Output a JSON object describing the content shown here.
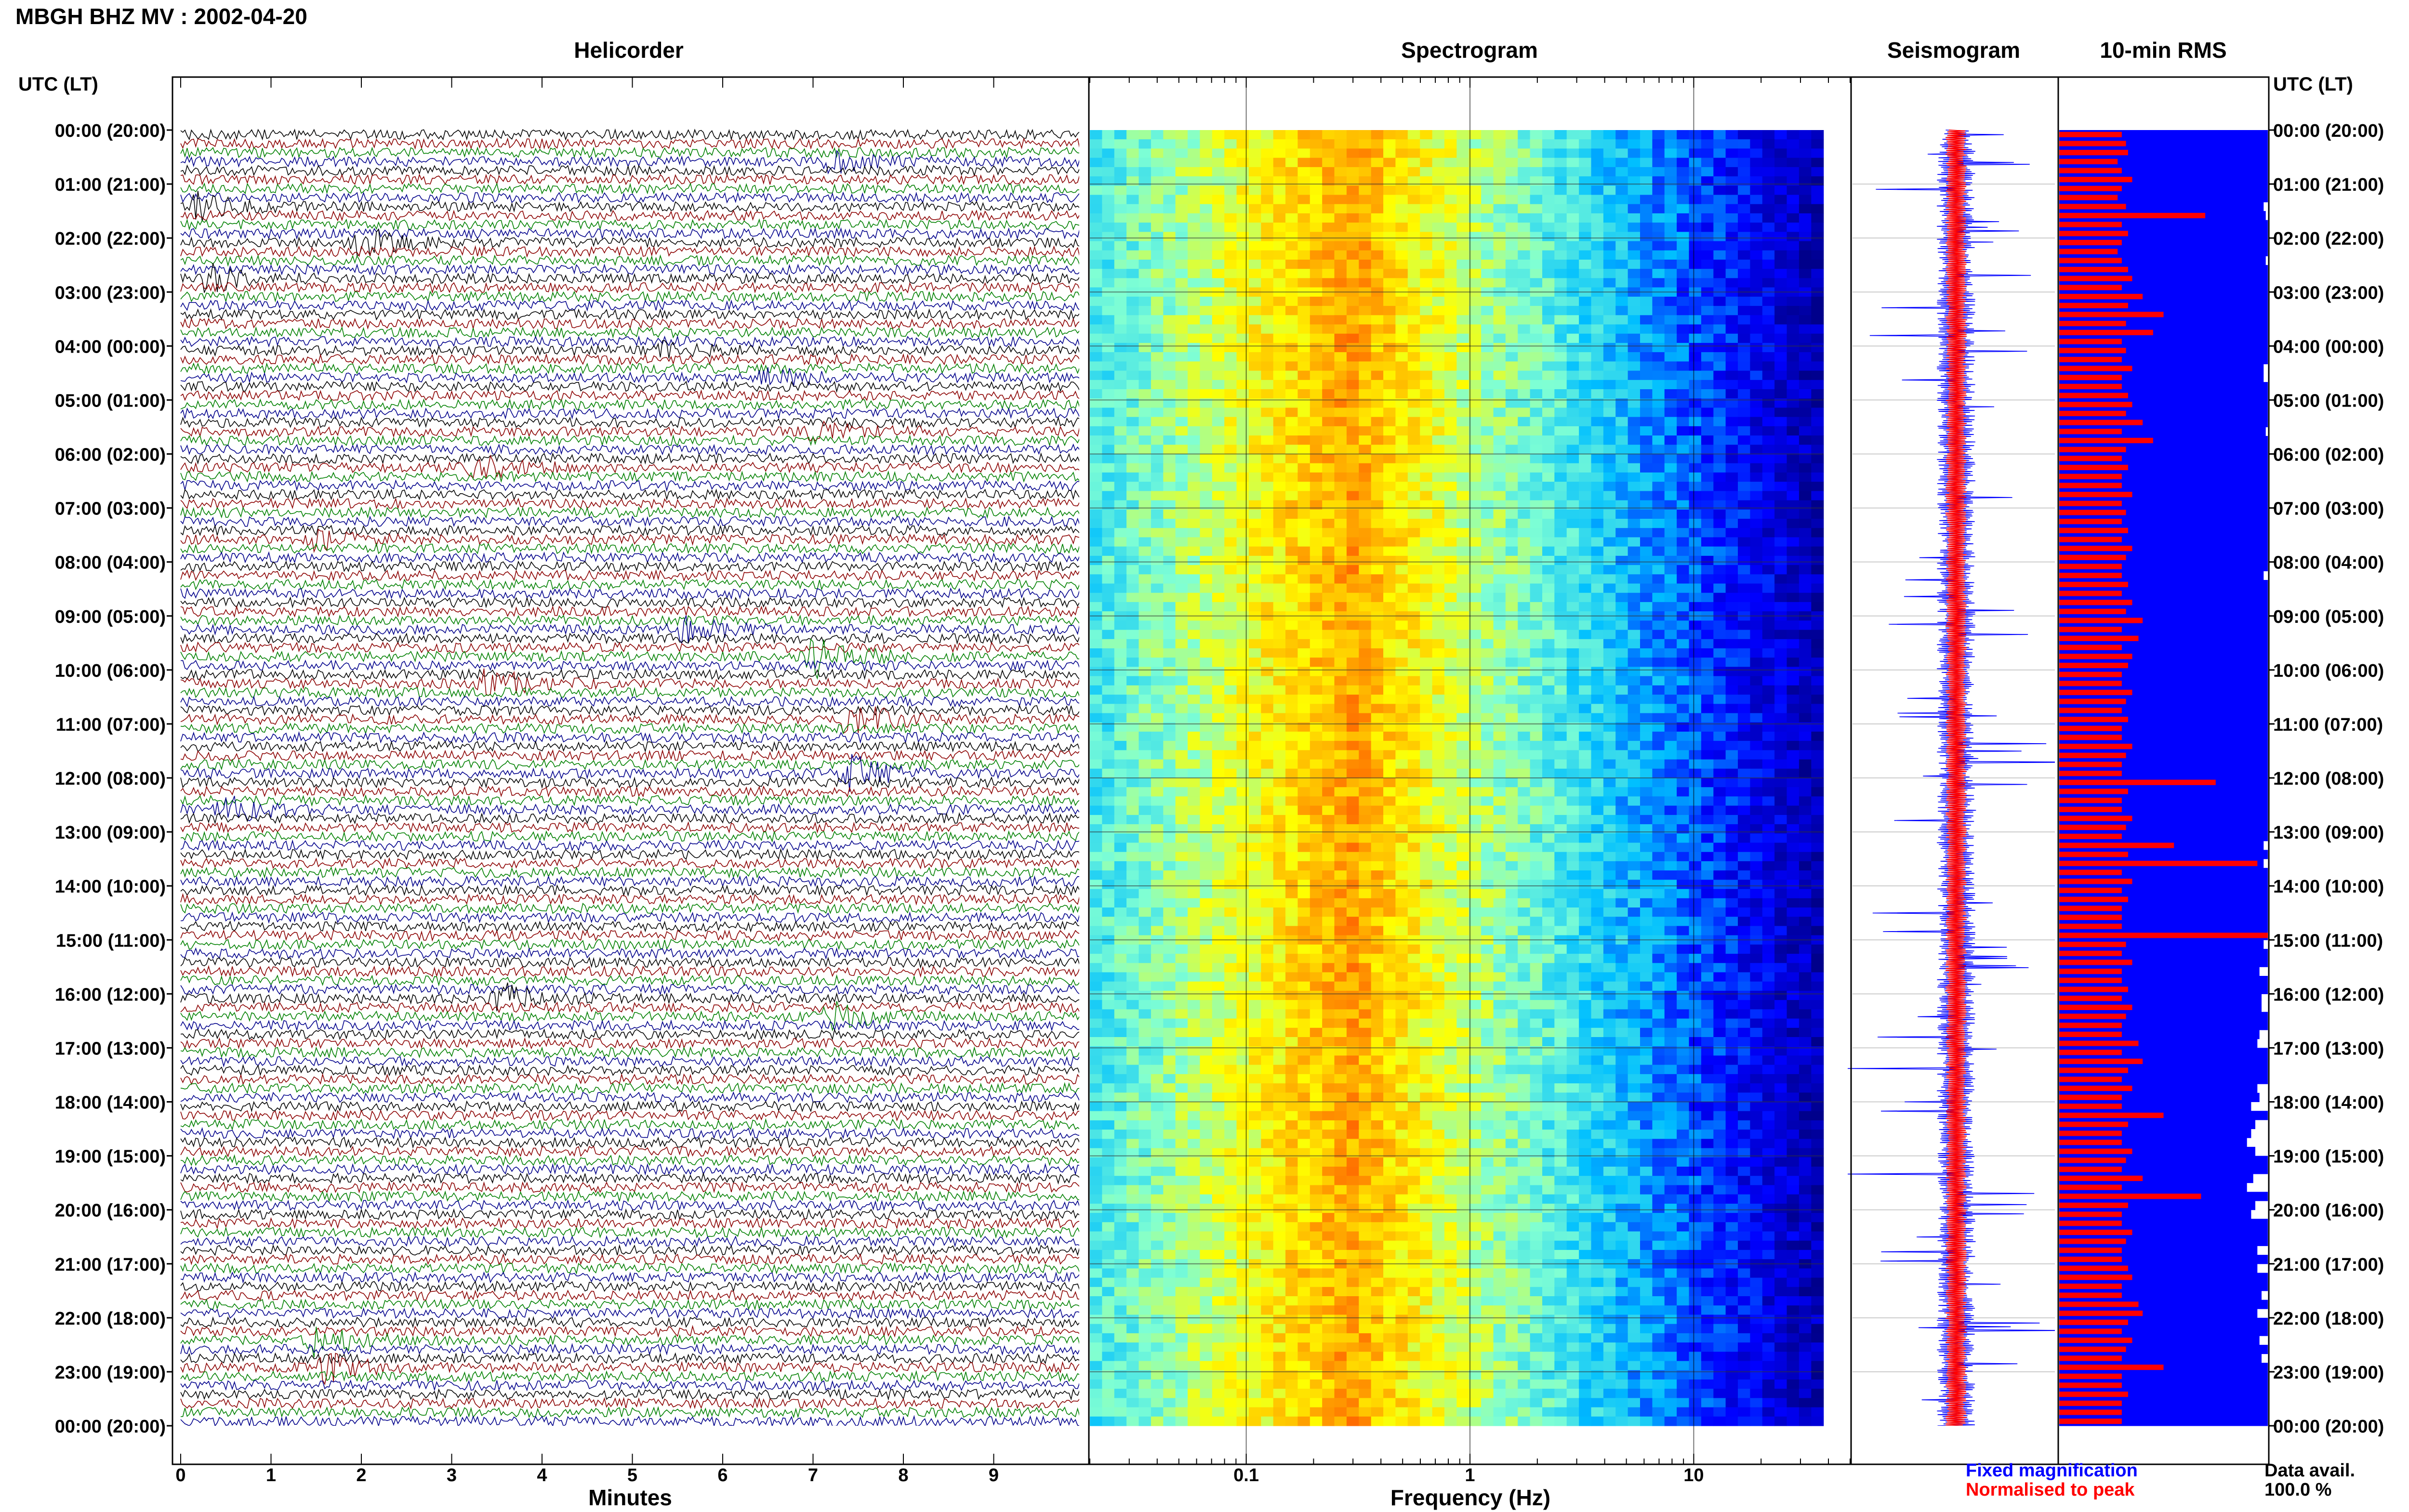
{
  "header": {
    "title": "MBGH BHZ MV : 2002-04-20"
  },
  "panels": {
    "helicorder": "Helicorder",
    "spectrogram": "Spectrogram",
    "seismogram": "Seismogram",
    "rms": "10-min RMS"
  },
  "axis_labels": {
    "left_time": "UTC (LT)",
    "right_time": "UTC (LT)",
    "minutes": "Minutes",
    "frequency": "Frequency (Hz)"
  },
  "legend": {
    "fixed": "Fixed magnification",
    "normalised": "Normalised to peak",
    "data_avail_label": "Data avail.",
    "data_avail_value": "100.0 %"
  },
  "colors": {
    "fixed": "#0000ff",
    "normalised": "#ff0000",
    "black": "#000000",
    "dark_red": "#8b0000",
    "green": "#008000",
    "blue": "#00008b"
  },
  "chart_data": [
    {
      "type": "line",
      "name": "helicorder",
      "xlabel": "Minutes",
      "xlim": [
        0,
        10
      ],
      "x_ticks": [
        0,
        1,
        2,
        3,
        4,
        5,
        6,
        7,
        8,
        9
      ],
      "time_labels": [
        "00:00 (20:00)",
        "01:00 (21:00)",
        "02:00 (22:00)",
        "03:00 (23:00)",
        "04:00 (00:00)",
        "05:00 (01:00)",
        "06:00 (02:00)",
        "07:00 (03:00)",
        "08:00 (04:00)",
        "09:00 (05:00)",
        "10:00 (06:00)",
        "11:00 (07:00)",
        "12:00 (08:00)",
        "13:00 (09:00)",
        "14:00 (10:00)",
        "15:00 (11:00)",
        "16:00 (12:00)",
        "17:00 (13:00)",
        "18:00 (14:00)",
        "19:00 (15:00)",
        "20:00 (16:00)",
        "21:00 (17:00)",
        "22:00 (18:00)",
        "23:00 (19:00)",
        "00:00 (20:00)"
      ],
      "traces_per_hour": 6,
      "trace_colors": [
        "#000000",
        "#8b0000",
        "#008000",
        "#00008b"
      ],
      "events": [
        {
          "trace": 3,
          "minute": 7.2,
          "amp": 2.2
        },
        {
          "trace": 8,
          "minute": 0.2,
          "amp": 2.6
        },
        {
          "trace": 12,
          "minute": 2.0,
          "amp": 3.0
        },
        {
          "trace": 16,
          "minute": 0.3,
          "amp": 2.6
        },
        {
          "trace": 24,
          "minute": 5.4,
          "amp": 1.8
        },
        {
          "trace": 27,
          "minute": 6.5,
          "amp": 1.8
        },
        {
          "trace": 33,
          "minute": 7.0,
          "amp": 1.8
        },
        {
          "trace": 37,
          "minute": 3.3,
          "amp": 2.2
        },
        {
          "trace": 45,
          "minute": 1.5,
          "amp": 1.8
        },
        {
          "trace": 55,
          "minute": 5.5,
          "amp": 3.5
        },
        {
          "trace": 58,
          "minute": 7.0,
          "amp": 5.5
        },
        {
          "trace": 61,
          "minute": 3.4,
          "amp": 3.0
        },
        {
          "trace": 65,
          "minute": 7.4,
          "amp": 4.0
        },
        {
          "trace": 71,
          "minute": 7.4,
          "amp": 3.5
        },
        {
          "trace": 75,
          "minute": 0.5,
          "amp": 2.8
        },
        {
          "trace": 96,
          "minute": 3.5,
          "amp": 3.2
        },
        {
          "trace": 98,
          "minute": 7.2,
          "amp": 2.5
        },
        {
          "trace": 134,
          "minute": 1.5,
          "amp": 3.5
        },
        {
          "trace": 137,
          "minute": 1.6,
          "amp": 2.8
        }
      ]
    },
    {
      "type": "heatmap",
      "name": "spectrogram",
      "xlabel": "Frequency (Hz)",
      "x_scale": "log",
      "xlim": [
        0.02,
        50
      ],
      "x_tick_labels": [
        0.1,
        1,
        10
      ],
      "peak_frequency_hz": 0.3,
      "colormap": [
        "#00008b",
        "#0000ff",
        "#00bfff",
        "#7fffd4",
        "#ffff00",
        "#ff8c00",
        "#ff0000"
      ]
    },
    {
      "type": "line",
      "name": "seismogram",
      "series": [
        {
          "name": "Fixed magnification",
          "color": "#0000ff"
        },
        {
          "name": "Normalised to peak",
          "color": "#ff0000"
        }
      ]
    },
    {
      "type": "bar",
      "name": "10-min RMS",
      "series": [
        {
          "name": "Fixed magnification",
          "color": "#0000ff"
        },
        {
          "name": "Normalised to peak",
          "color": "#ff0000"
        }
      ],
      "normalised_values": [
        0.3,
        0.32,
        0.33,
        0.28,
        0.3,
        0.35,
        0.3,
        0.28,
        0.32,
        0.7,
        0.3,
        0.33,
        0.3,
        0.28,
        0.3,
        0.33,
        0.35,
        0.3,
        0.4,
        0.33,
        0.5,
        0.32,
        0.45,
        0.3,
        0.32,
        0.3,
        0.35,
        0.3,
        0.3,
        0.33,
        0.35,
        0.32,
        0.4,
        0.3,
        0.45,
        0.32,
        0.3,
        0.33,
        0.3,
        0.3,
        0.35,
        0.3,
        0.32,
        0.3,
        0.33,
        0.3,
        0.35,
        0.32,
        0.3,
        0.3,
        0.33,
        0.3,
        0.35,
        0.32,
        0.4,
        0.3,
        0.38,
        0.3,
        0.35,
        0.33,
        0.3,
        0.3,
        0.35,
        0.32,
        0.3,
        0.33,
        0.3,
        0.3,
        0.35,
        0.32,
        0.3,
        0.3,
        0.75,
        0.33,
        0.3,
        0.3,
        0.35,
        0.32,
        0.3,
        0.55,
        0.33,
        0.95,
        0.3,
        0.35,
        0.3,
        0.33,
        0.3,
        0.3,
        0.3,
        1.0,
        0.32,
        0.3,
        0.35,
        0.3,
        0.3,
        0.33,
        0.3,
        0.35,
        0.32,
        0.3,
        0.3,
        0.38,
        0.3,
        0.4,
        0.33,
        0.3,
        0.35,
        0.3,
        0.3,
        0.5,
        0.33,
        0.3,
        0.3,
        0.35,
        0.32,
        0.3,
        0.4,
        0.3,
        0.68,
        0.33,
        0.3,
        0.3,
        0.35,
        0.32,
        0.3,
        0.3,
        0.33,
        0.35,
        0.3,
        0.3,
        0.38,
        0.4,
        0.33,
        0.3,
        0.35,
        0.32,
        0.3,
        0.5,
        0.3,
        0.3,
        0.33,
        0.3,
        0.3,
        0.3
      ],
      "fixed_gaps": [
        0,
        0,
        0,
        0,
        0,
        0,
        0,
        0,
        0.02,
        0.01,
        0,
        0,
        0,
        0,
        0.01,
        0,
        0,
        0,
        0,
        0,
        0,
        0,
        0,
        0,
        0,
        0,
        0.02,
        0.02,
        0,
        0,
        0,
        0,
        0,
        0.01,
        0,
        0,
        0,
        0,
        0,
        0,
        0,
        0,
        0,
        0,
        0,
        0,
        0,
        0,
        0,
        0.02,
        0,
        0,
        0,
        0,
        0,
        0,
        0,
        0,
        0,
        0,
        0,
        0,
        0,
        0,
        0,
        0,
        0,
        0,
        0,
        0,
        0,
        0,
        0,
        0,
        0,
        0,
        0,
        0,
        0,
        0.02,
        0,
        0.02,
        0,
        0,
        0,
        0,
        0,
        0,
        0,
        0,
        0.02,
        0,
        0,
        0.04,
        0,
        0,
        0.03,
        0.03,
        0,
        0,
        0.04,
        0.05,
        0,
        0,
        0,
        0,
        0.05,
        0.04,
        0.08,
        0,
        0.06,
        0.08,
        0.1,
        0.06,
        0,
        0,
        0.07,
        0.1,
        0,
        0.06,
        0.08,
        0,
        0,
        0,
        0.05,
        0,
        0.05,
        0,
        0,
        0.03,
        0,
        0.05,
        0,
        0,
        0.04,
        0,
        0.03,
        0,
        0,
        0,
        0,
        0,
        0,
        0
      ]
    }
  ]
}
